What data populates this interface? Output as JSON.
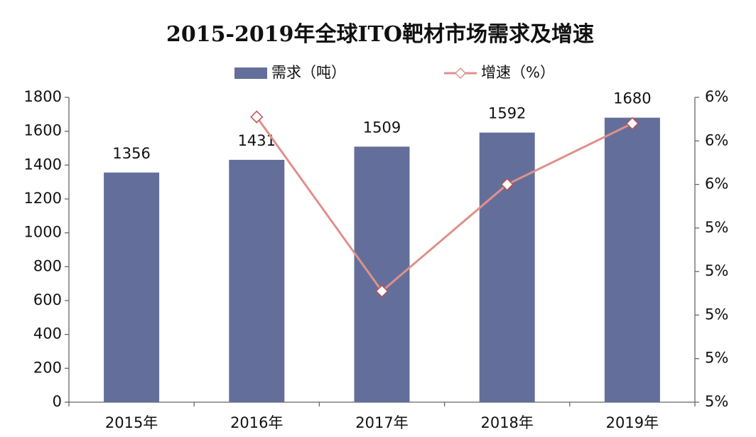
{
  "chart_data": {
    "type": "bar-line",
    "title": "2015-2019年全球ITO靶材市场需求及增速",
    "categories": [
      "2015年",
      "2016年",
      "2017年",
      "2018年",
      "2019年"
    ],
    "series": [
      {
        "name": "需求（吨）",
        "type": "bar",
        "color": "#636f9a",
        "values": [
          1356,
          1431,
          1509,
          1592,
          1680
        ]
      },
      {
        "name": "增速（%）",
        "type": "line",
        "color": "#e0908a",
        "axis": "y2",
        "values": [
          null,
          5.531,
          5.451,
          5.5,
          5.528
        ]
      }
    ],
    "ylim": [
      0,
      1800
    ],
    "yticks": [
      0,
      200,
      400,
      600,
      800,
      1000,
      1200,
      1400,
      1600,
      1800
    ],
    "y2lim": [
      5.4,
      5.54
    ],
    "y2ticks": [
      {
        "value": 5.4,
        "label": "5%"
      },
      {
        "value": 5.42,
        "label": "5%"
      },
      {
        "value": 5.44,
        "label": "5%"
      },
      {
        "value": 5.46,
        "label": "5%"
      },
      {
        "value": 5.48,
        "label": "5%"
      },
      {
        "value": 5.5,
        "label": "6%"
      },
      {
        "value": 5.52,
        "label": "6%"
      },
      {
        "value": 5.54,
        "label": "6%"
      }
    ],
    "legend": "top",
    "grid": false
  }
}
